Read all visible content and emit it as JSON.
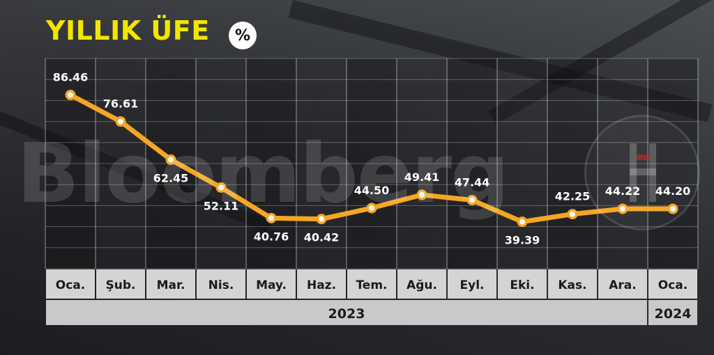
{
  "title": "YILLIK ÜFE",
  "unit": "%",
  "watermark": "Bloomberg",
  "colors": {
    "title": "#f3e600",
    "line": "#f5a623",
    "point_fill": "#ffffff",
    "label_bg": "#d4d4d4",
    "year_bg": "#c9c9c9"
  },
  "chart_data": {
    "type": "line",
    "title": "YILLIK ÜFE",
    "unit": "%",
    "categories": [
      "Oca.",
      "Şub.",
      "Mar.",
      "Nis.",
      "May.",
      "Haz.",
      "Tem.",
      "Ağu.",
      "Eyl.",
      "Eki.",
      "Kas.",
      "Ara.",
      "Oca."
    ],
    "series": [
      {
        "values": [
          86.46,
          76.61,
          62.45,
          52.11,
          40.76,
          40.42,
          44.5,
          49.41,
          47.44,
          39.39,
          42.25,
          44.22,
          44.2
        ]
      }
    ],
    "value_labels": [
      "86.46",
      "76.61",
      "62.45",
      "52.11",
      "40.76",
      "40.42",
      "44.50",
      "49.41",
      "47.44",
      "39.39",
      "42.25",
      "44.22",
      "44.20"
    ],
    "years": [
      {
        "label": "2023",
        "span": 12
      },
      {
        "label": "2024",
        "span": 1
      }
    ],
    "ylim": [
      22,
      100
    ],
    "grid": true,
    "legend": "none"
  }
}
